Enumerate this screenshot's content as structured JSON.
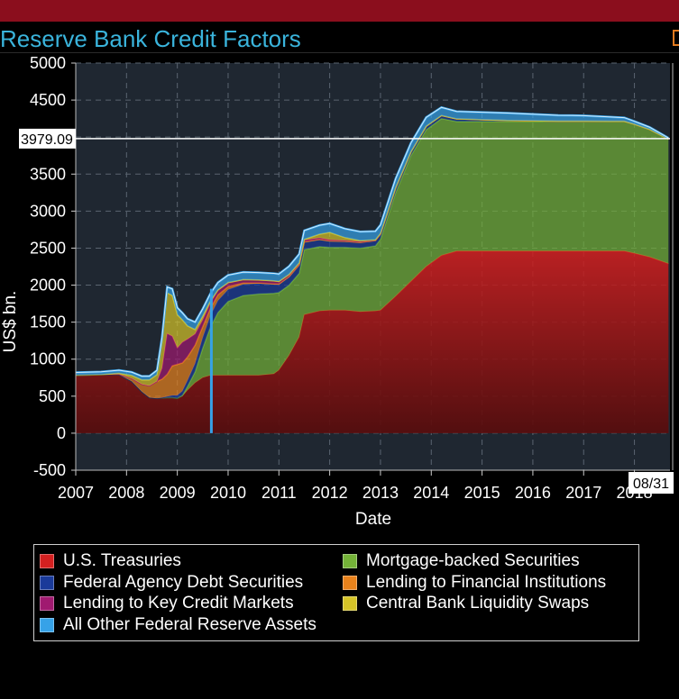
{
  "header": {
    "title": "Reserve Bank Credit Factors"
  },
  "colors": {
    "treasuries": "#d42020",
    "mbs": "#74b238",
    "agency": "#1a3a9a",
    "lending_fi": "#e8821c",
    "key_credit": "#a01a70",
    "swaps": "#d6c428",
    "other": "#36a2e8"
  },
  "chart_data": {
    "type": "area",
    "title": "Reserve Bank Credit Factors",
    "xlabel": "Date",
    "ylabel": "US$ bn.",
    "x_tick_labels": [
      "2007",
      "2008",
      "2009",
      "2010",
      "2011",
      "2012",
      "2013",
      "2014",
      "2015",
      "2016",
      "2017",
      "2018"
    ],
    "y_tick_labels": [
      "5000",
      "4500",
      "4000",
      "3500",
      "3000",
      "2500",
      "2000",
      "1500",
      "1000",
      "500",
      "0",
      "-500"
    ],
    "xlim": [
      2007.0,
      2018.7
    ],
    "ylim": [
      -500,
      5000
    ],
    "stacked": true,
    "grid": true,
    "legend_position": "bottom",
    "last_value_label": "3979.09",
    "last_date_label": "08/31",
    "x": [
      2007.0,
      2007.5,
      2007.85,
      2008.1,
      2008.3,
      2008.45,
      2008.6,
      2008.7,
      2008.8,
      2008.9,
      2009.0,
      2009.1,
      2009.2,
      2009.35,
      2009.5,
      2009.65,
      2009.8,
      2010.0,
      2010.3,
      2010.6,
      2010.9,
      2011.0,
      2011.2,
      2011.4,
      2011.5,
      2011.8,
      2012.0,
      2012.3,
      2012.6,
      2012.9,
      2013.0,
      2013.3,
      2013.6,
      2013.9,
      2014.2,
      2014.5,
      2014.8,
      2015.0,
      2015.5,
      2016.0,
      2016.5,
      2017.0,
      2017.5,
      2017.8,
      2018.0,
      2018.3,
      2018.67
    ],
    "series": [
      {
        "name": "U.S. Treasuries",
        "values": [
          780,
          790,
          790,
          700,
          560,
          480,
          470,
          475,
          480,
          480,
          470,
          500,
          580,
          680,
          750,
          780,
          780,
          780,
          780,
          780,
          800,
          850,
          1050,
          1300,
          1600,
          1650,
          1660,
          1660,
          1640,
          1650,
          1660,
          1850,
          2050,
          2250,
          2400,
          2460,
          2460,
          2460,
          2460,
          2460,
          2460,
          2460,
          2460,
          2460,
          2430,
          2380,
          2290
        ]
      },
      {
        "name": "Mortgage-backed Securities",
        "values": [
          0,
          0,
          0,
          0,
          0,
          0,
          0,
          0,
          0,
          0,
          0,
          10,
          50,
          150,
          400,
          650,
          850,
          1000,
          1080,
          1100,
          1090,
          1050,
          950,
          860,
          880,
          870,
          850,
          850,
          860,
          880,
          960,
          1400,
          1700,
          1850,
          1850,
          1750,
          1750,
          1750,
          1750,
          1750,
          1750,
          1750,
          1750,
          1750,
          1740,
          1720,
          1680
        ]
      },
      {
        "name": "Federal Agency Debt Securities",
        "values": [
          0,
          0,
          0,
          0,
          0,
          0,
          0,
          5,
          15,
          30,
          40,
          60,
          80,
          110,
          140,
          155,
          160,
          160,
          150,
          140,
          120,
          110,
          110,
          110,
          100,
          95,
          85,
          80,
          75,
          70,
          68,
          60,
          50,
          45,
          40,
          35,
          30,
          25,
          15,
          10,
          5,
          5,
          3,
          3,
          3,
          3,
          3
        ]
      },
      {
        "name": "Lending to Financial Institutions",
        "values": [
          0,
          0,
          5,
          40,
          100,
          160,
          230,
          250,
          300,
          400,
          420,
          380,
          320,
          250,
          150,
          100,
          80,
          40,
          20,
          10,
          8,
          5,
          5,
          5,
          3,
          3,
          2,
          2,
          2,
          2,
          2,
          2,
          1,
          1,
          1,
          1,
          0,
          0,
          0,
          0,
          0,
          0,
          0,
          0,
          0,
          0,
          0
        ]
      },
      {
        "name": "Lending to Key Credit Markets",
        "values": [
          0,
          0,
          0,
          0,
          0,
          0,
          0,
          150,
          550,
          400,
          220,
          280,
          240,
          150,
          90,
          70,
          60,
          50,
          45,
          40,
          40,
          35,
          30,
          25,
          25,
          20,
          15,
          10,
          10,
          5,
          5,
          5,
          0,
          0,
          0,
          0,
          0,
          0,
          0,
          0,
          0,
          0,
          0,
          0,
          0,
          0,
          0
        ]
      },
      {
        "name": "Central Bank Liquidity Swaps",
        "values": [
          0,
          0,
          15,
          40,
          60,
          80,
          90,
          350,
          550,
          550,
          450,
          300,
          180,
          60,
          50,
          30,
          5,
          5,
          0,
          0,
          0,
          0,
          0,
          0,
          10,
          50,
          100,
          40,
          15,
          5,
          3,
          3,
          0,
          0,
          0,
          0,
          0,
          0,
          0,
          0,
          0,
          0,
          0,
          0,
          0,
          0,
          0
        ]
      },
      {
        "name": "All Other Federal Reserve Assets",
        "values": [
          40,
          40,
          40,
          45,
          50,
          50,
          60,
          70,
          80,
          90,
          95,
          95,
          95,
          100,
          100,
          100,
          100,
          100,
          100,
          100,
          100,
          100,
          110,
          120,
          120,
          120,
          120,
          120,
          120,
          115,
          115,
          120,
          120,
          120,
          110,
          100,
          100,
          100,
          100,
          90,
          80,
          75,
          60,
          50,
          40,
          30,
          15
        ]
      }
    ],
    "markers": [
      {
        "x": 2009.67,
        "from": 0,
        "to": 1950
      }
    ]
  },
  "legend": {
    "items": [
      {
        "label": "U.S. Treasuries",
        "color": "#d42020"
      },
      {
        "label": "Mortgage-backed Securities",
        "color": "#74b238"
      },
      {
        "label": "Federal Agency Debt Securities",
        "color": "#1a3a9a"
      },
      {
        "label": "Lending to Financial Institutions",
        "color": "#e8821c"
      },
      {
        "label": "Lending to Key Credit Markets",
        "color": "#a01a70"
      },
      {
        "label": "Central Bank Liquidity Swaps",
        "color": "#d6c428"
      },
      {
        "label": "All Other Federal Reserve Assets",
        "color": "#36a2e8"
      }
    ]
  }
}
